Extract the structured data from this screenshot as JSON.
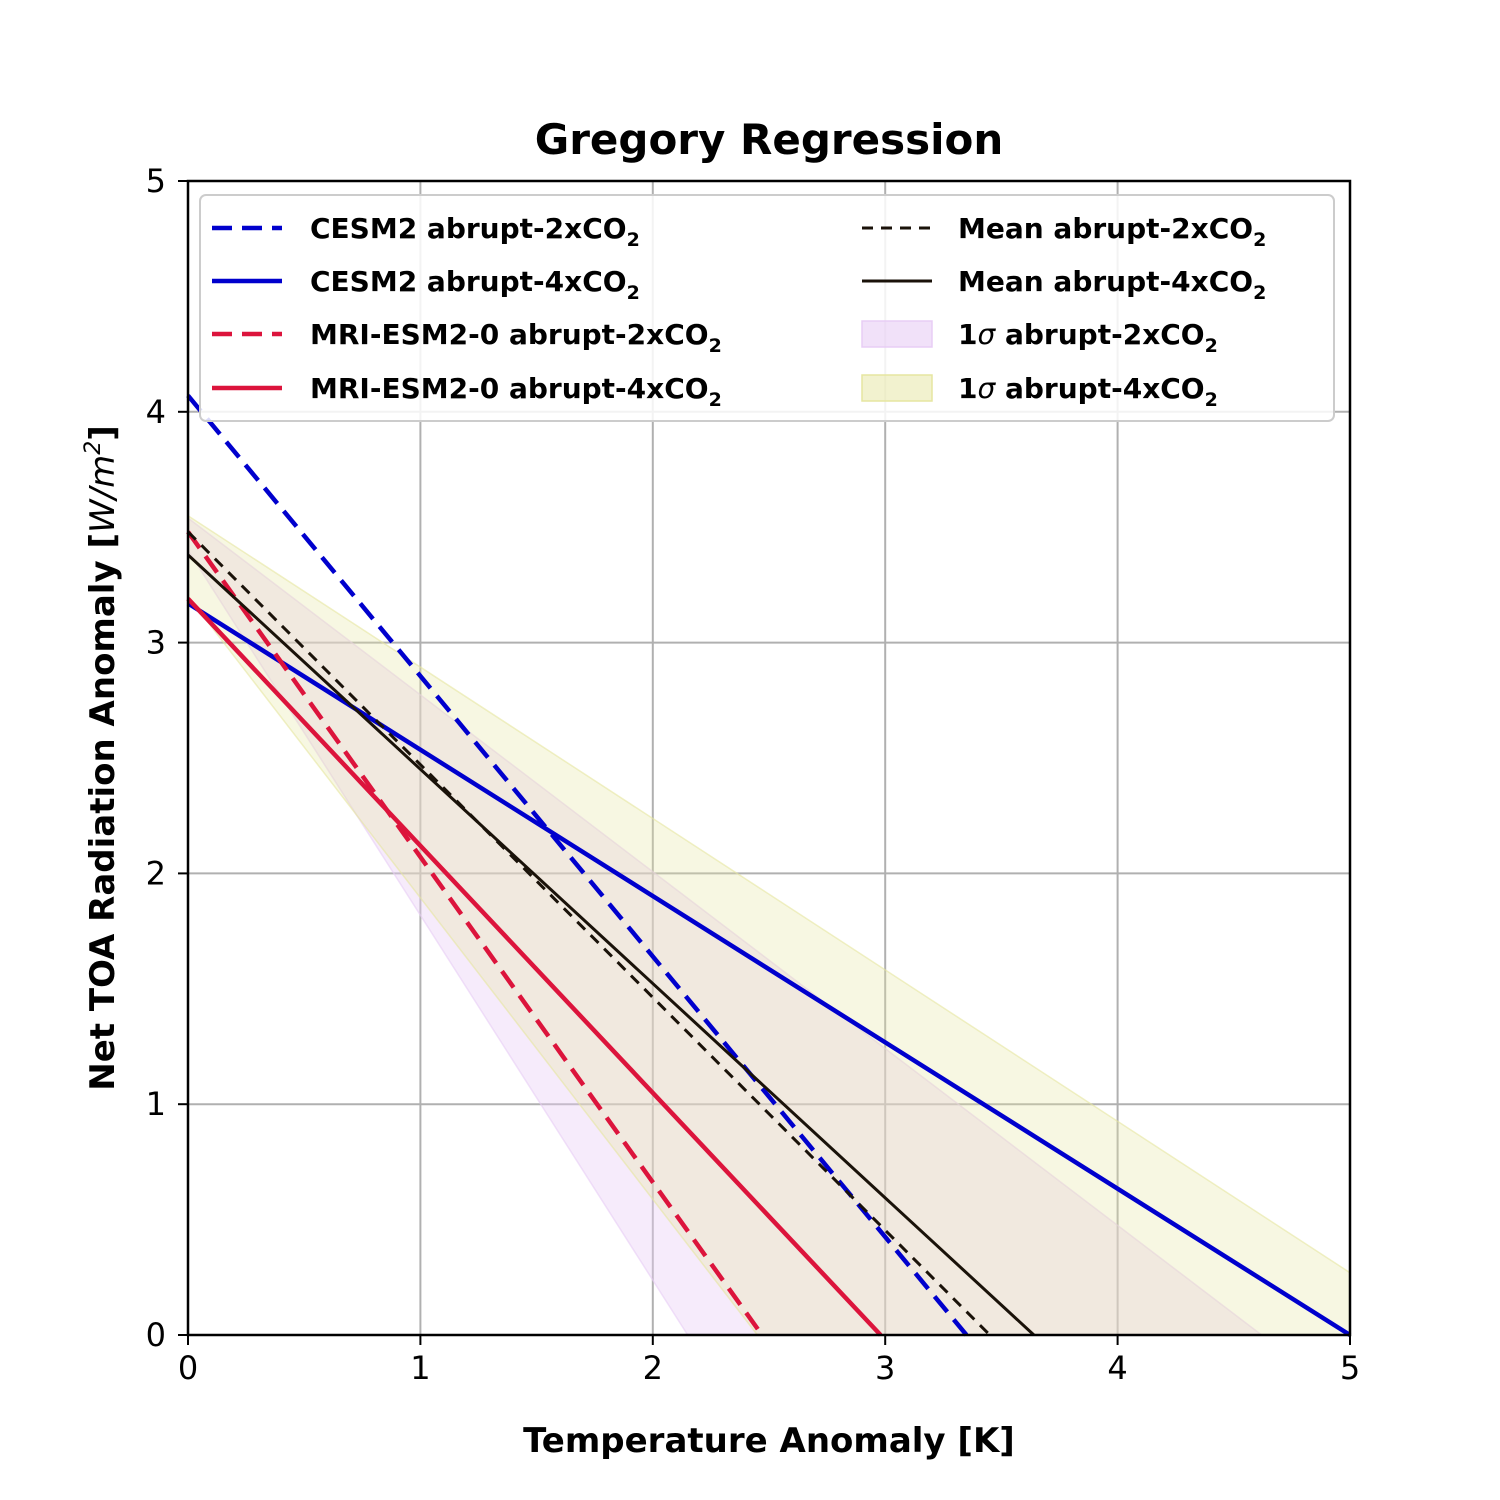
{
  "chart_data": {
    "type": "line",
    "title": "Gregory Regression",
    "xlabel": "Temperature Anomaly [K]",
    "ylabel_main": "Net TOA Radiation Anomaly [",
    "ylabel_unit": "W/m",
    "ylabel_sup": "2",
    "ylabel_end": "]",
    "xlim": [
      0,
      5
    ],
    "ylim": [
      0,
      5
    ],
    "xticks": [
      0,
      1,
      2,
      3,
      4,
      5
    ],
    "yticks": [
      0,
      1,
      2,
      3,
      4,
      5
    ],
    "grid": true,
    "legend_position": "top",
    "series": [
      {
        "id": "cesm2_2x",
        "name": "CESM2 abrupt-2xCO",
        "sub": "2",
        "style": "dashed",
        "color": "#0000cd",
        "x": [
          0,
          3.35
        ],
        "y": [
          4.07,
          0.0
        ]
      },
      {
        "id": "cesm2_4x",
        "name": "CESM2 abrupt-4xCO",
        "sub": "2",
        "style": "solid",
        "color": "#0000cd",
        "x": [
          0,
          5.0
        ],
        "y": [
          3.17,
          0.0
        ]
      },
      {
        "id": "mri_2x",
        "name": "MRI-ESM2-0 abrupt-2xCO",
        "sub": "2",
        "style": "dashed",
        "color": "#dc143c",
        "x": [
          0,
          2.47
        ],
        "y": [
          3.48,
          0.0
        ]
      },
      {
        "id": "mri_4x",
        "name": "MRI-ESM2-0 abrupt-4xCO",
        "sub": "2",
        "style": "solid",
        "color": "#dc143c",
        "x": [
          0,
          2.98
        ],
        "y": [
          3.19,
          0.0
        ]
      },
      {
        "id": "mean_2x",
        "name": "Mean abrupt-2xCO",
        "sub": "2",
        "style": "dashed-thin",
        "color": "#1a1209",
        "x": [
          0,
          3.45
        ],
        "y": [
          3.48,
          0.0
        ]
      },
      {
        "id": "mean_4x",
        "name": "Mean abrupt-4xCO",
        "sub": "2",
        "style": "solid-thin",
        "color": "#1a1209",
        "x": [
          0,
          3.64
        ],
        "y": [
          3.38,
          0.0
        ]
      }
    ],
    "bands": [
      {
        "id": "sigma_2x",
        "name_prefix": "1",
        "symbol": "σ",
        "name": " abrupt-2xCO",
        "sub": "2",
        "color": "#e8cdf5",
        "opacity": 0.4,
        "polygon": [
          [
            0,
            3.4
          ],
          [
            2.15,
            0
          ],
          [
            4.62,
            0
          ],
          [
            0,
            3.54
          ]
        ]
      },
      {
        "id": "sigma_4x",
        "name_prefix": "1",
        "symbol": "σ",
        "name": " abrupt-4xCO",
        "sub": "2",
        "color": "#e6e6a0",
        "opacity": 0.3,
        "polygon": [
          [
            0,
            3.2
          ],
          [
            2.45,
            0
          ],
          [
            5.0,
            0
          ],
          [
            5.0,
            0.27
          ],
          [
            0,
            3.55
          ]
        ]
      }
    ]
  }
}
